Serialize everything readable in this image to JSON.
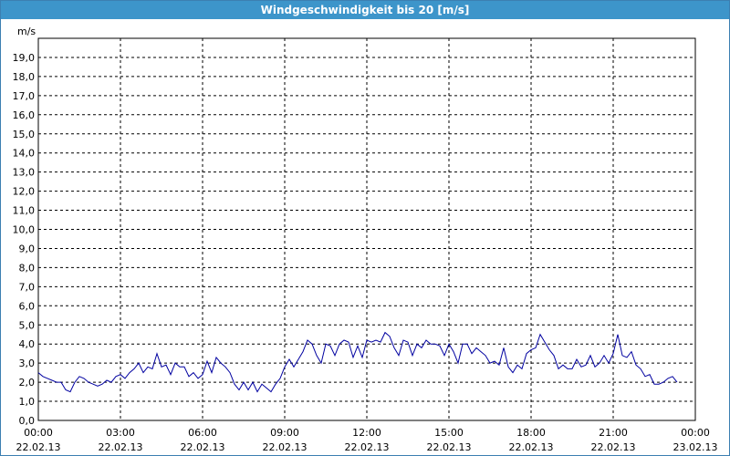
{
  "window": {
    "title": "Windgeschwindigkeit bis 20 [m/s]"
  },
  "colors": {
    "title_bar": "#3d95ca",
    "series": "#0000a0",
    "grid": "#000000"
  },
  "chart_data": {
    "type": "line",
    "title": "Windgeschwindigkeit bis 20 [m/s]",
    "ylabel": "m/s",
    "ylim": [
      0,
      20
    ],
    "xlim": [
      "22.02.13 00:00",
      "23.02.13 00:00"
    ],
    "grid": true,
    "y_ticks": [
      "0,0",
      "1,0",
      "2,0",
      "3,0",
      "4,0",
      "5,0",
      "6,0",
      "7,0",
      "8,0",
      "9,0",
      "10,0",
      "11,0",
      "12,0",
      "13,0",
      "14,0",
      "15,0",
      "16,0",
      "17,0",
      "18,0",
      "19,0"
    ],
    "x_ticks": [
      {
        "time": "00:00",
        "date": "22.02.13"
      },
      {
        "time": "03:00",
        "date": "22.02.13"
      },
      {
        "time": "06:00",
        "date": "22.02.13"
      },
      {
        "time": "09:00",
        "date": "22.02.13"
      },
      {
        "time": "12:00",
        "date": "22.02.13"
      },
      {
        "time": "15:00",
        "date": "22.02.13"
      },
      {
        "time": "18:00",
        "date": "22.02.13"
      },
      {
        "time": "21:00",
        "date": "22.02.13"
      },
      {
        "time": "00:00",
        "date": "23.02.13"
      }
    ],
    "series": [
      {
        "x_interval_minutes": 10,
        "values": [
          2.5,
          2.3,
          2.2,
          2.1,
          2.0,
          2.0,
          1.6,
          1.5,
          2.0,
          2.3,
          2.2,
          2.0,
          1.9,
          1.8,
          1.9,
          2.1,
          2.0,
          2.3,
          2.4,
          2.2,
          2.5,
          2.7,
          3.0,
          2.5,
          2.8,
          2.7,
          3.5,
          2.8,
          2.9,
          2.4,
          3.0,
          2.8,
          2.8,
          2.3,
          2.5,
          2.2,
          2.4,
          3.1,
          2.5,
          3.3,
          3.0,
          2.8,
          2.5,
          1.9,
          1.6,
          2.0,
          1.6,
          2.0,
          1.5,
          1.9,
          1.7,
          1.5,
          1.9,
          2.2,
          2.8,
          3.2,
          2.8,
          3.2,
          3.6,
          4.2,
          4.0,
          3.4,
          3.0,
          4.0,
          3.9,
          3.4,
          4.0,
          4.2,
          4.1,
          3.3,
          3.9,
          3.3,
          4.2,
          4.1,
          4.2,
          4.1,
          4.6,
          4.4,
          3.8,
          3.4,
          4.2,
          4.1,
          3.4,
          4.0,
          3.8,
          4.2,
          4.0,
          4.0,
          3.9,
          3.4,
          4.0,
          3.6,
          3.0,
          4.0,
          4.0,
          3.5,
          3.8,
          3.6,
          3.4,
          3.0,
          3.1,
          2.9,
          3.8,
          2.8,
          2.5,
          2.9,
          2.7,
          3.5,
          3.7,
          3.8,
          4.5,
          4.1,
          3.7,
          3.4,
          2.7,
          2.9,
          2.7,
          2.7,
          3.2,
          2.8,
          2.9,
          3.4,
          2.8,
          3.0,
          3.4,
          3.0,
          3.5,
          4.5,
          3.4,
          3.3,
          3.6,
          2.9,
          2.7,
          2.3,
          2.4,
          1.9,
          1.9,
          2.0,
          2.2,
          2.3,
          2.0
        ]
      }
    ]
  }
}
